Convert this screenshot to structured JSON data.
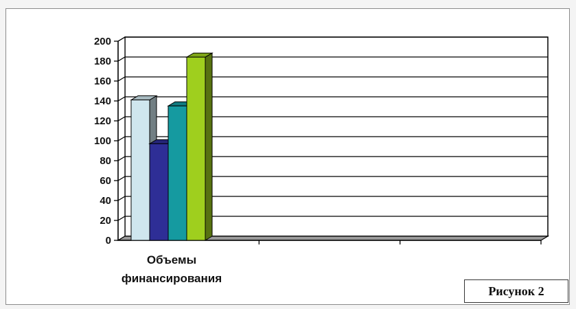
{
  "chart_data": {
    "type": "bar",
    "categories": [
      "Объемы финансирования",
      "",
      ""
    ],
    "category_label_lines": [
      "Объемы",
      "финансирования"
    ],
    "series": [
      {
        "values": [
          141,
          null,
          null
        ],
        "color": "#cfe6ee"
      },
      {
        "values": [
          97,
          null,
          null
        ],
        "color": "#2e2e96"
      },
      {
        "values": [
          135,
          null,
          null
        ],
        "color": "#159aa0"
      },
      {
        "values": [
          184,
          null,
          null
        ],
        "color": "#9fcf1e"
      }
    ],
    "ylim": [
      0,
      200
    ],
    "yticks": [
      "0",
      "20",
      "40",
      "60",
      "80",
      "100",
      "120",
      "140",
      "160",
      "180",
      "200"
    ],
    "grid": true,
    "legend": "none",
    "style": "3d-column",
    "title": "",
    "xlabel": "",
    "ylabel": ""
  },
  "caption": {
    "text": "Рисунок 2"
  }
}
